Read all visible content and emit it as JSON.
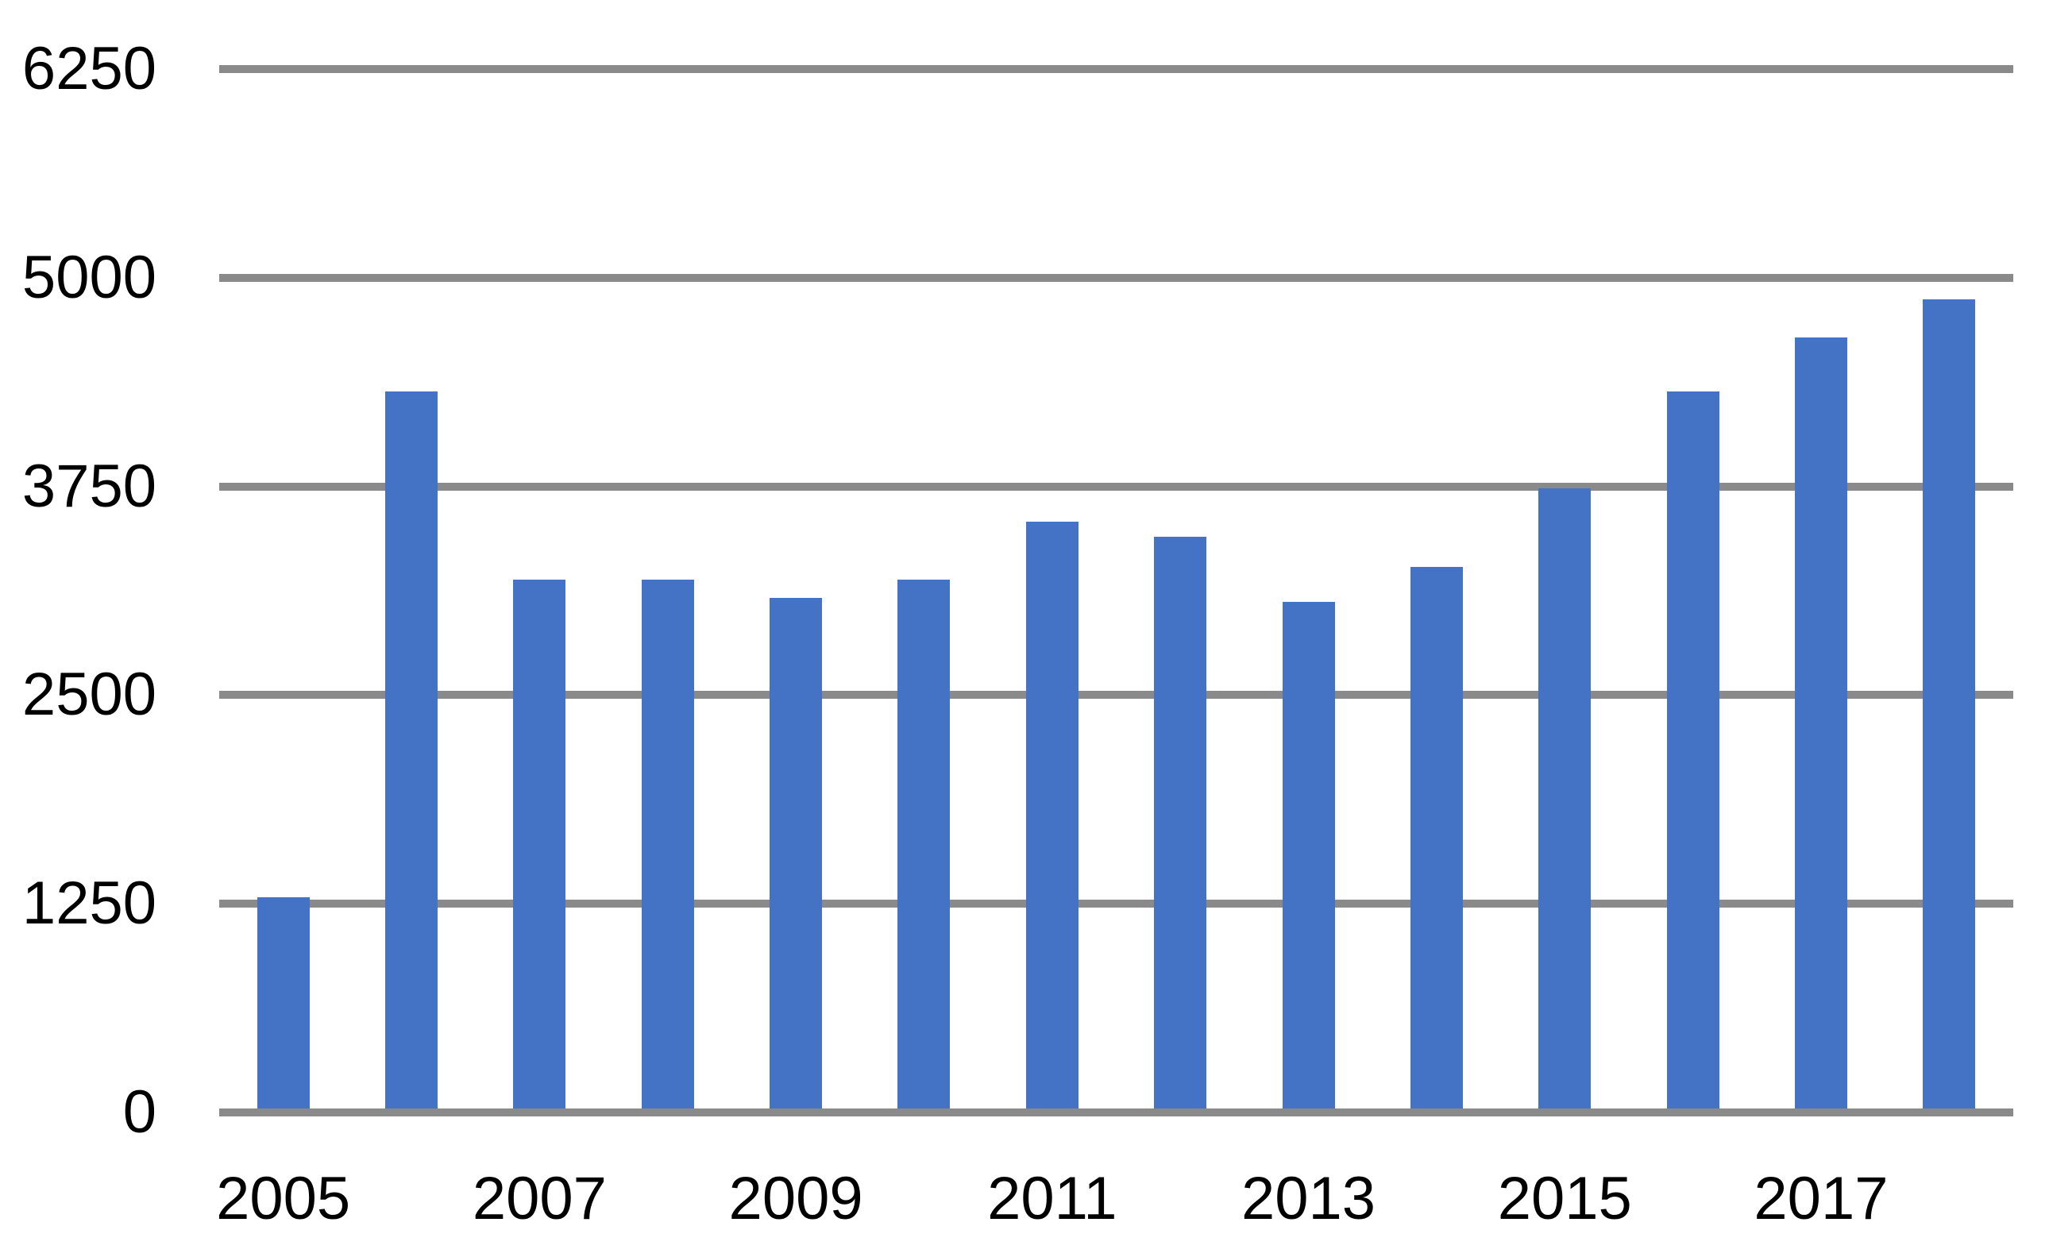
{
  "chart_data": {
    "type": "bar",
    "title": "",
    "xlabel": "",
    "ylabel": "",
    "categories": [
      "2005",
      "2006",
      "2007",
      "2008",
      "2009",
      "2010",
      "2011",
      "2012",
      "2013",
      "2014",
      "2015",
      "2016",
      "2017",
      "2018"
    ],
    "values": [
      1290,
      4320,
      3190,
      3190,
      3080,
      3190,
      3540,
      3450,
      3060,
      3270,
      3740,
      4320,
      4640,
      4870
    ],
    "series": [
      {
        "name": "",
        "values": [
          1290,
          4320,
          3190,
          3190,
          3080,
          3190,
          3540,
          3450,
          3060,
          3270,
          3740,
          4320,
          4640,
          4870
        ]
      }
    ],
    "ylim": [
      0,
      6250
    ],
    "yticks": [
      0,
      1250,
      2500,
      3750,
      5000,
      6250
    ],
    "ytick_labels": [
      "0",
      "1250",
      "2500",
      "3750",
      "5000",
      "6250"
    ],
    "xtick_labels_visible": [
      "2005",
      "2007",
      "2009",
      "2011",
      "2013",
      "2015",
      "2017"
    ],
    "xtick_label_every": 2,
    "grid": "horizontal",
    "legend": "none",
    "bar_color": "#4472C4",
    "gridline_color": "#8A8A8A",
    "axis_line_color": "#8A8A8A",
    "text_color": "#000000",
    "background_color": "#FFFFFF"
  }
}
